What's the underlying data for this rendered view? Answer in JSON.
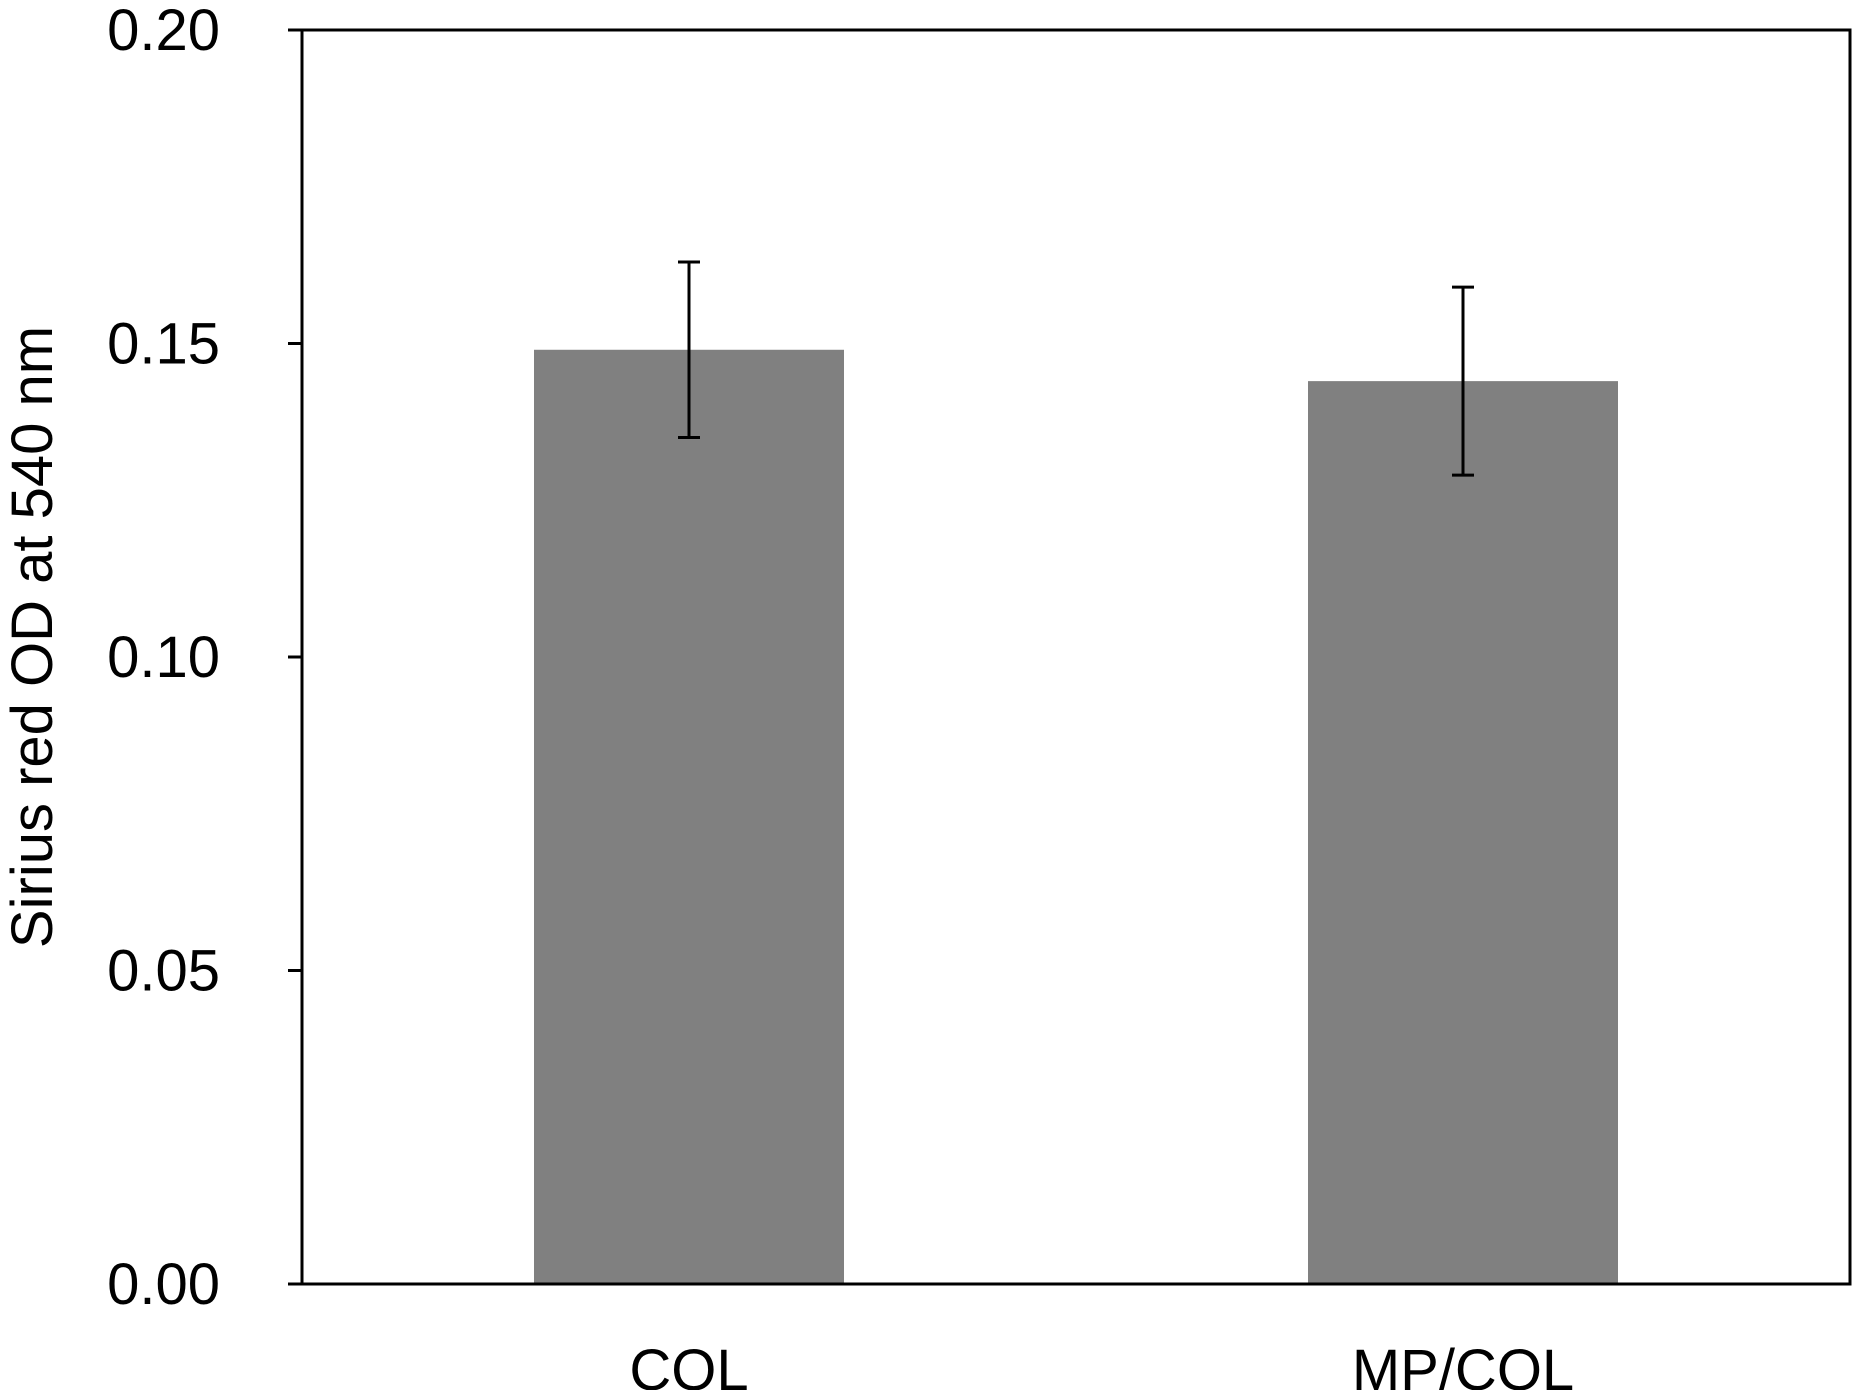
{
  "chart_data": {
    "type": "bar",
    "title": "",
    "xlabel": "",
    "ylabel": "Sirius red OD at 540 nm",
    "categories": [
      "COL",
      "MP/COL"
    ],
    "values": [
      0.149,
      0.144
    ],
    "errors": [
      0.014,
      0.015
    ],
    "ylim": [
      0.0,
      0.2
    ],
    "yticks": [
      0.0,
      0.05,
      0.1,
      0.15,
      0.2
    ],
    "ytick_labels": [
      "0.00",
      "0.05",
      "0.10",
      "0.15",
      "0.20"
    ],
    "grid": false,
    "legend": "none",
    "bar_color": "#808080",
    "axis_color": "#000000"
  }
}
